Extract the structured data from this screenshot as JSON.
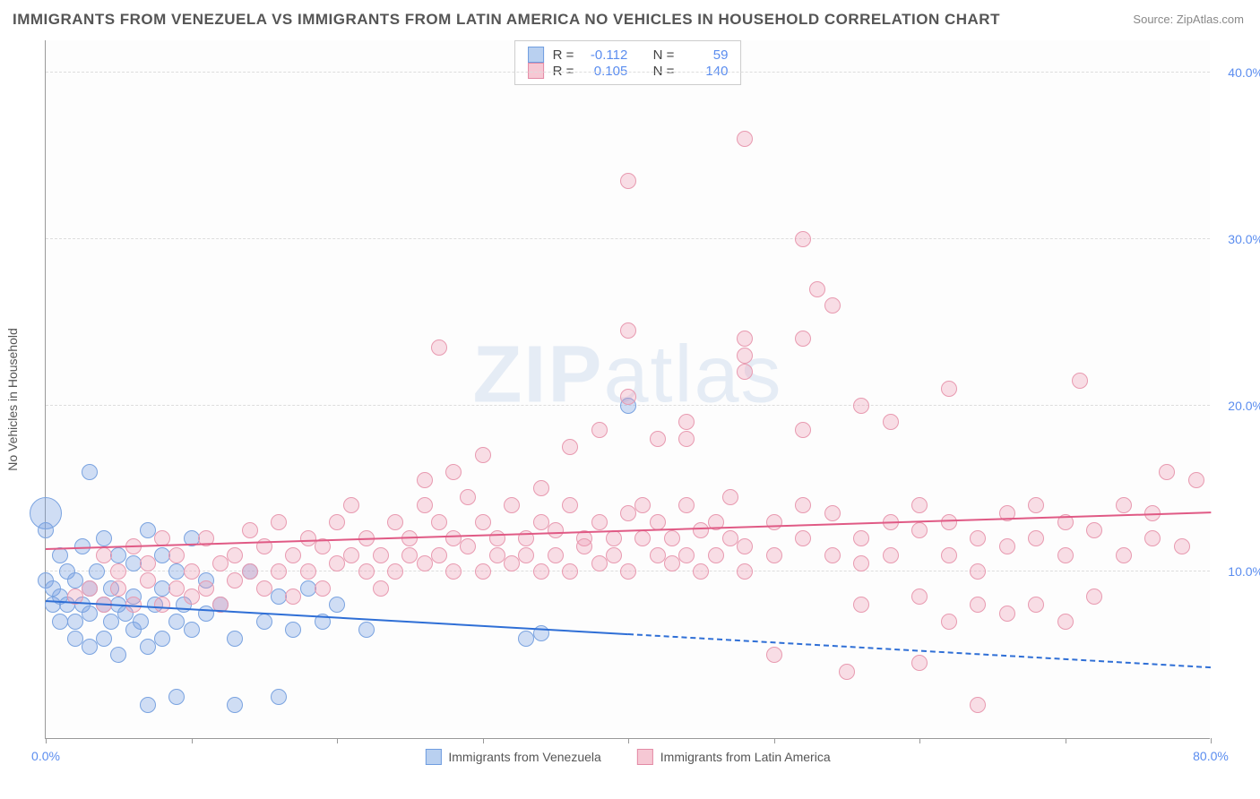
{
  "title": "IMMIGRANTS FROM VENEZUELA VS IMMIGRANTS FROM LATIN AMERICA NO VEHICLES IN HOUSEHOLD CORRELATION CHART",
  "source_label": "Source:",
  "source_name": "ZipAtlas.com",
  "ylabel": "No Vehicles in Household",
  "watermark_bold": "ZIP",
  "watermark_rest": "atlas",
  "chart": {
    "type": "scatter",
    "xlim": [
      0,
      80
    ],
    "ylim": [
      0,
      42
    ],
    "xtick_positions": [
      0,
      10,
      20,
      30,
      40,
      50,
      60,
      70,
      80
    ],
    "xtick_labels": {
      "0": "0.0%",
      "80": "80.0%"
    },
    "ytick_positions": [
      10,
      20,
      30,
      40
    ],
    "ytick_labels": [
      "10.0%",
      "20.0%",
      "30.0%",
      "40.0%"
    ],
    "grid_color": "#dddddd",
    "background_color": "#fdfdfd",
    "axis_color": "#999999",
    "tick_label_color": "#5b8def"
  },
  "series": [
    {
      "name": "Immigrants from Venezuela",
      "color_fill": "rgba(120,160,225,0.35)",
      "color_stroke": "#7aa3e0",
      "swatch_fill": "#b9d0f0",
      "swatch_stroke": "#6f9de0",
      "marker_radius": 9,
      "R": "-0.112",
      "N": "59",
      "trend": {
        "x1": 0,
        "y1": 8.2,
        "x2": 40,
        "y2": 6.2,
        "color": "#2f6fd6",
        "dash_after_x": 40,
        "x2_ext": 80,
        "y2_ext": 4.2
      },
      "points": [
        [
          0,
          12.5
        ],
        [
          0,
          9.5
        ],
        [
          0.5,
          8
        ],
        [
          0.5,
          9
        ],
        [
          1,
          11
        ],
        [
          1,
          7
        ],
        [
          1,
          8.5
        ],
        [
          1.5,
          10
        ],
        [
          1.5,
          8
        ],
        [
          2,
          7
        ],
        [
          2,
          9.5
        ],
        [
          2,
          6
        ],
        [
          2.5,
          8
        ],
        [
          2.5,
          11.5
        ],
        [
          3,
          7.5
        ],
        [
          3,
          9
        ],
        [
          3,
          5.5
        ],
        [
          3.5,
          10
        ],
        [
          4,
          8
        ],
        [
          4,
          6
        ],
        [
          4,
          12
        ],
        [
          4.5,
          7
        ],
        [
          4.5,
          9
        ],
        [
          5,
          8
        ],
        [
          5,
          11
        ],
        [
          5,
          5
        ],
        [
          5.5,
          7.5
        ],
        [
          6,
          10.5
        ],
        [
          6,
          6.5
        ],
        [
          6,
          8.5
        ],
        [
          6.5,
          7
        ],
        [
          7,
          12.5
        ],
        [
          7,
          5.5
        ],
        [
          7.5,
          8
        ],
        [
          8,
          11
        ],
        [
          8,
          6
        ],
        [
          8,
          9
        ],
        [
          9,
          7
        ],
        [
          9,
          10
        ],
        [
          9.5,
          8
        ],
        [
          10,
          6.5
        ],
        [
          10,
          12
        ],
        [
          11,
          7.5
        ],
        [
          11,
          9.5
        ],
        [
          12,
          8
        ],
        [
          13,
          6
        ],
        [
          14,
          10
        ],
        [
          15,
          7
        ],
        [
          16,
          8.5
        ],
        [
          17,
          6.5
        ],
        [
          18,
          9
        ],
        [
          19,
          7
        ],
        [
          20,
          8
        ],
        [
          22,
          6.5
        ],
        [
          7,
          2
        ],
        [
          9,
          2.5
        ],
        [
          13,
          2
        ],
        [
          16,
          2.5
        ],
        [
          3,
          16
        ],
        [
          0,
          13.5,
          18
        ],
        [
          33,
          6
        ],
        [
          34,
          6.3
        ],
        [
          40,
          20
        ]
      ]
    },
    {
      "name": "Immigrants from Latin America",
      "color_fill": "rgba(240,150,175,0.30)",
      "color_stroke": "#e89ab0",
      "swatch_fill": "#f6c8d4",
      "swatch_stroke": "#e38aa5",
      "marker_radius": 9,
      "R": "0.105",
      "N": "140",
      "trend": {
        "x1": 0,
        "y1": 11.3,
        "x2": 80,
        "y2": 13.5,
        "color": "#e05a85"
      },
      "points": [
        [
          2,
          8.5
        ],
        [
          3,
          9
        ],
        [
          4,
          11
        ],
        [
          4,
          8
        ],
        [
          5,
          10
        ],
        [
          5,
          9
        ],
        [
          6,
          8
        ],
        [
          6,
          11.5
        ],
        [
          7,
          9.5
        ],
        [
          7,
          10.5
        ],
        [
          8,
          8
        ],
        [
          8,
          12
        ],
        [
          9,
          11
        ],
        [
          9,
          9
        ],
        [
          10,
          10
        ],
        [
          10,
          8.5
        ],
        [
          11,
          12
        ],
        [
          11,
          9
        ],
        [
          12,
          10.5
        ],
        [
          12,
          8
        ],
        [
          13,
          11
        ],
        [
          13,
          9.5
        ],
        [
          14,
          10
        ],
        [
          14,
          12.5
        ],
        [
          15,
          11.5
        ],
        [
          15,
          9
        ],
        [
          16,
          10
        ],
        [
          16,
          13
        ],
        [
          17,
          11
        ],
        [
          17,
          8.5
        ],
        [
          18,
          12
        ],
        [
          18,
          10
        ],
        [
          19,
          11.5
        ],
        [
          19,
          9
        ],
        [
          20,
          13
        ],
        [
          20,
          10.5
        ],
        [
          21,
          11
        ],
        [
          21,
          14
        ],
        [
          22,
          10
        ],
        [
          22,
          12
        ],
        [
          23,
          11
        ],
        [
          23,
          9
        ],
        [
          24,
          13
        ],
        [
          24,
          10
        ],
        [
          25,
          12
        ],
        [
          25,
          11
        ],
        [
          26,
          14
        ],
        [
          26,
          10.5
        ],
        [
          27,
          11
        ],
        [
          27,
          13
        ],
        [
          28,
          12
        ],
        [
          28,
          10
        ],
        [
          29,
          11.5
        ],
        [
          29,
          14.5
        ],
        [
          30,
          10
        ],
        [
          30,
          13
        ],
        [
          31,
          12
        ],
        [
          31,
          11
        ],
        [
          32,
          10.5
        ],
        [
          32,
          14
        ],
        [
          33,
          12
        ],
        [
          33,
          11
        ],
        [
          34,
          13
        ],
        [
          34,
          10
        ],
        [
          35,
          12.5
        ],
        [
          35,
          11
        ],
        [
          36,
          14
        ],
        [
          36,
          10
        ],
        [
          37,
          12
        ],
        [
          37,
          11.5
        ],
        [
          38,
          13
        ],
        [
          38,
          10.5
        ],
        [
          39,
          12
        ],
        [
          39,
          11
        ],
        [
          40,
          13.5
        ],
        [
          40,
          10
        ],
        [
          41,
          12
        ],
        [
          41,
          14
        ],
        [
          42,
          11
        ],
        [
          42,
          13
        ],
        [
          43,
          12
        ],
        [
          43,
          10.5
        ],
        [
          44,
          11
        ],
        [
          44,
          14
        ],
        [
          45,
          12.5
        ],
        [
          45,
          10
        ],
        [
          46,
          13
        ],
        [
          46,
          11
        ],
        [
          47,
          12
        ],
        [
          47,
          14.5
        ],
        [
          48,
          11.5
        ],
        [
          48,
          10
        ],
        [
          50,
          13
        ],
        [
          50,
          11
        ],
        [
          52,
          12
        ],
        [
          52,
          14
        ],
        [
          54,
          11
        ],
        [
          54,
          13.5
        ],
        [
          56,
          12
        ],
        [
          56,
          10.5
        ],
        [
          58,
          13
        ],
        [
          58,
          11
        ],
        [
          60,
          12.5
        ],
        [
          60,
          14
        ],
        [
          62,
          11
        ],
        [
          62,
          13
        ],
        [
          64,
          12
        ],
        [
          64,
          10
        ],
        [
          66,
          13.5
        ],
        [
          66,
          11.5
        ],
        [
          68,
          12
        ],
        [
          68,
          14
        ],
        [
          70,
          11
        ],
        [
          70,
          13
        ],
        [
          72,
          12.5
        ],
        [
          74,
          11
        ],
        [
          74,
          14
        ],
        [
          76,
          12
        ],
        [
          76,
          13.5
        ],
        [
          77,
          16
        ],
        [
          78,
          11.5
        ],
        [
          79,
          15.5
        ],
        [
          40,
          20.5
        ],
        [
          42,
          18
        ],
        [
          44,
          19
        ],
        [
          48,
          22
        ],
        [
          52,
          18.5
        ],
        [
          56,
          20
        ],
        [
          58,
          19
        ],
        [
          62,
          21
        ],
        [
          48,
          36
        ],
        [
          40,
          33.5
        ],
        [
          52,
          30
        ],
        [
          53,
          27
        ],
        [
          54,
          26
        ],
        [
          27,
          23.5
        ],
        [
          40,
          24.5
        ],
        [
          48,
          24
        ],
        [
          48,
          23
        ],
        [
          52,
          24
        ],
        [
          44,
          18
        ],
        [
          56,
          8
        ],
        [
          60,
          8.5
        ],
        [
          62,
          7
        ],
        [
          64,
          8
        ],
        [
          66,
          7.5
        ],
        [
          68,
          8
        ],
        [
          70,
          7
        ],
        [
          72,
          8.5
        ],
        [
          55,
          4
        ],
        [
          60,
          4.5
        ],
        [
          50,
          5
        ],
        [
          64,
          2
        ],
        [
          36,
          17.5
        ],
        [
          38,
          18.5
        ],
        [
          26,
          15.5
        ],
        [
          28,
          16
        ],
        [
          30,
          17
        ],
        [
          34,
          15
        ],
        [
          71,
          21.5
        ]
      ]
    }
  ],
  "legend": {
    "R_label": "R =",
    "N_label": "N ="
  }
}
